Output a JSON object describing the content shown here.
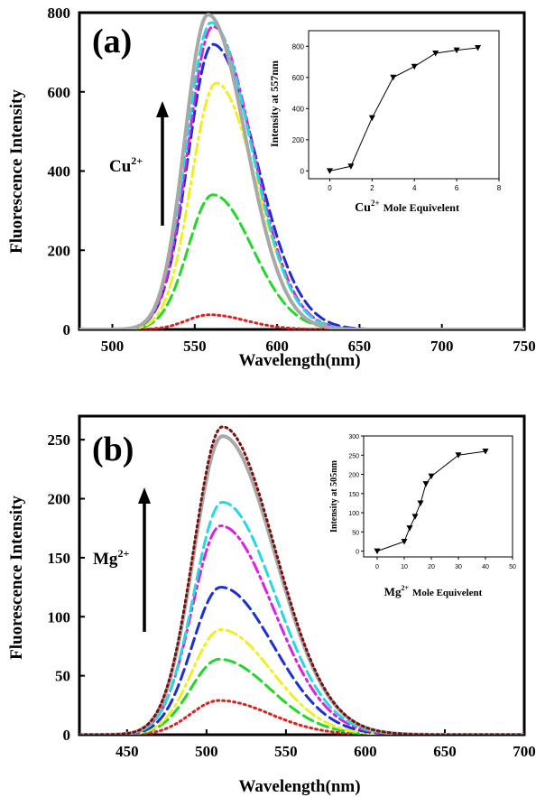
{
  "chart_data": [
    {
      "panel_label": "(a)",
      "type": "line",
      "xlabel": "Wavelength(nm)",
      "ylabel": "Fluorescence Intensity",
      "xlim": [
        480,
        750
      ],
      "ylim": [
        0,
        800
      ],
      "xticks": [
        500,
        550,
        600,
        650,
        700,
        750
      ],
      "yticks": [
        0,
        200,
        400,
        600,
        800
      ],
      "arrow_label": {
        "base": "Cu",
        "sup": "2+"
      },
      "series": [
        {
          "color": "#e0201e",
          "style": "dotted",
          "peak_x": 559,
          "peak_y": 37,
          "sigma_left": 14,
          "sigma_right": 22
        },
        {
          "color": "#22d82a",
          "style": "dashed",
          "peak_x": 561,
          "peak_y": 340,
          "sigma_left": 15,
          "sigma_right": 24
        },
        {
          "color": "#f0f020",
          "style": "dashdot",
          "peak_x": 563,
          "peak_y": 622,
          "sigma_left": 15,
          "sigma_right": 24
        },
        {
          "color": "#1b2fd6",
          "style": "dashed",
          "peak_x": 561,
          "peak_y": 720,
          "sigma_left": 15,
          "sigma_right": 26
        },
        {
          "color": "#e020e0",
          "style": "dashdot",
          "peak_x": 561,
          "peak_y": 765,
          "sigma_left": 15,
          "sigma_right": 24
        },
        {
          "color": "#26d8e0",
          "style": "dashed",
          "peak_x": 560,
          "peak_y": 775,
          "sigma_left": 15,
          "sigma_right": 24
        },
        {
          "color": "#a8a8a8",
          "style": "solid",
          "peak_x": 558,
          "peak_y": 795,
          "sigma_left": 14,
          "sigma_right": 23
        }
      ],
      "inset": {
        "ylabel": "Intensity at 557nm",
        "xlabel": {
          "base": "Cu",
          "sup": "2+",
          "rest": "Mole Equivelent"
        },
        "xlim": [
          -1,
          8
        ],
        "ylim": [
          -50,
          900
        ],
        "xticks": [
          0,
          2,
          4,
          6,
          8
        ],
        "yticks": [
          0,
          200,
          400,
          600,
          800
        ],
        "x": [
          0,
          1,
          2,
          3,
          4,
          5,
          6,
          7
        ],
        "y": [
          0,
          30,
          340,
          600,
          670,
          755,
          775,
          790
        ]
      }
    },
    {
      "panel_label": "(b)",
      "type": "line",
      "xlabel": "Wavelength(nm)",
      "ylabel": "Fluorescence Intensity",
      "xlim": [
        420,
        700
      ],
      "ylim": [
        0,
        270
      ],
      "xticks": [
        450,
        500,
        550,
        600,
        650,
        700
      ],
      "yticks": [
        0,
        50,
        100,
        150,
        200,
        250
      ],
      "arrow_label": {
        "base": "Mg",
        "sup": "2+"
      },
      "series": [
        {
          "color": "#e0201e",
          "style": "dotted",
          "peak_x": 508,
          "peak_y": 29,
          "sigma_left": 18,
          "sigma_right": 32
        },
        {
          "color": "#22d82a",
          "style": "dashed",
          "peak_x": 508,
          "peak_y": 64,
          "sigma_left": 18,
          "sigma_right": 32
        },
        {
          "color": "#f0f020",
          "style": "dashdot",
          "peak_x": 509,
          "peak_y": 89,
          "sigma_left": 18,
          "sigma_right": 32
        },
        {
          "color": "#1b2fd6",
          "style": "dashed",
          "peak_x": 509,
          "peak_y": 125,
          "sigma_left": 18,
          "sigma_right": 33
        },
        {
          "color": "#e020e0",
          "style": "dashdot",
          "peak_x": 509,
          "peak_y": 177,
          "sigma_left": 18,
          "sigma_right": 33
        },
        {
          "color": "#26d8e0",
          "style": "dashed",
          "peak_x": 510,
          "peak_y": 197,
          "sigma_left": 18,
          "sigma_right": 33
        },
        {
          "color": "#a8a8a8",
          "style": "solid",
          "peak_x": 510,
          "peak_y": 253,
          "sigma_left": 18,
          "sigma_right": 33
        },
        {
          "color": "#7a1010",
          "style": "dotted",
          "peak_x": 510,
          "peak_y": 261,
          "sigma_left": 18,
          "sigma_right": 33
        }
      ],
      "inset": {
        "ylabel": "Intensity at 505nm",
        "xlabel": {
          "base": "Mg",
          "sup": "2+",
          "rest": "Mole Equivelent"
        },
        "xlim": [
          -5,
          50
        ],
        "ylim": [
          -15,
          300
        ],
        "xticks": [
          0,
          10,
          20,
          30,
          40,
          50
        ],
        "yticks": [
          0,
          50,
          100,
          150,
          200,
          250,
          300
        ],
        "x": [
          0,
          10,
          12,
          14,
          16,
          18,
          20,
          30,
          40
        ],
        "y": [
          0,
          25,
          60,
          90,
          125,
          175,
          195,
          250,
          260
        ]
      }
    }
  ]
}
